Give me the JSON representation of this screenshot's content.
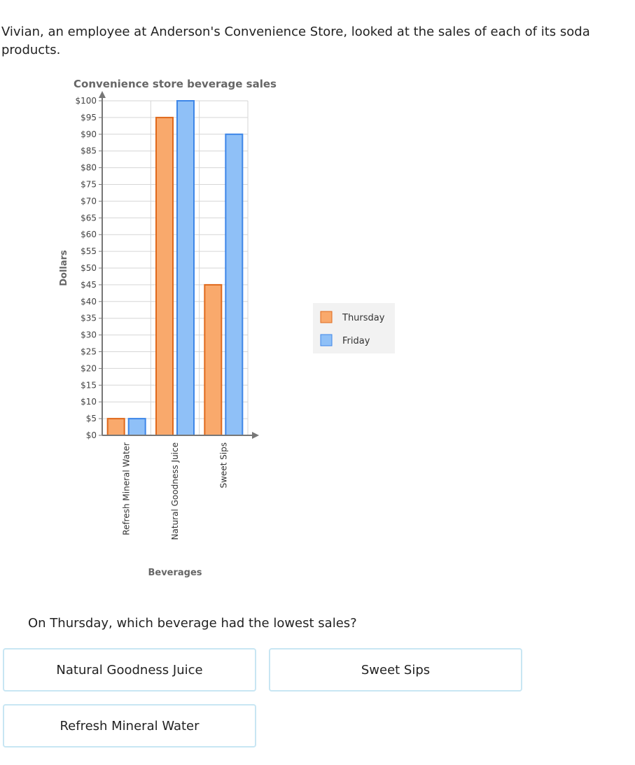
{
  "question": {
    "intro": "Vivian, an employee at Anderson's Convenience Store, looked at the sales of each of its soda products.",
    "prompt": "On Thursday, which beverage had the lowest sales?"
  },
  "answers": [
    {
      "label": "Natural Goodness Juice"
    },
    {
      "label": "Sweet Sips"
    },
    {
      "label": "Refresh Mineral Water"
    }
  ],
  "colors": {
    "thursday_fill": "#f9a96c",
    "thursday_stroke": "#e0691c",
    "friday_fill": "#8fc0f7",
    "friday_stroke": "#3d86e8",
    "axis": "#777777",
    "grid": "#d6d6d6",
    "answer_border": "#c8e6f3"
  },
  "chart_data": {
    "type": "bar",
    "title": "Convenience store beverage sales",
    "xlabel": "Beverages",
    "ylabel": "Dollars",
    "categories": [
      "Refresh Mineral Water",
      "Natural Goodness Juice",
      "Sweet Sips"
    ],
    "series": [
      {
        "name": "Thursday",
        "values": [
          5,
          95,
          45
        ]
      },
      {
        "name": "Friday",
        "values": [
          5,
          100,
          90
        ]
      }
    ],
    "ylim": [
      0,
      100
    ],
    "ytick_step": 5,
    "tick_prefix": "$",
    "grid": true,
    "legend_position": "right"
  }
}
